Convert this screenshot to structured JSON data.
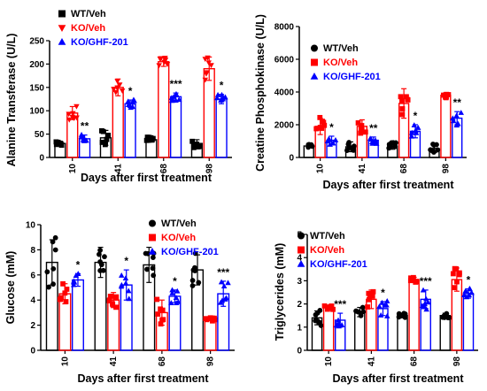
{
  "colors": {
    "WT/Veh": "#000000",
    "KO/Veh": "#ff0000",
    "KO/GHF-201": "#0000ff"
  },
  "chart_data": [
    {
      "id": "alt",
      "type": "bar",
      "ylabel": "Alanine Transferase (U/L)",
      "xlabel": "Days after first treatment",
      "categories": [
        "10",
        "41",
        "68",
        "98"
      ],
      "ylim": [
        0,
        250
      ],
      "yticks": [
        "0",
        "50",
        "100",
        "150",
        "200",
        "250"
      ],
      "legend": "top-left",
      "series": [
        {
          "name": "WT/Veh",
          "marker": "square",
          "values": [
            30,
            42,
            38,
            30
          ],
          "err": [
            4,
            16,
            5,
            8
          ]
        },
        {
          "name": "KO/Veh",
          "marker": "triangle-down",
          "values": [
            95,
            150,
            205,
            190
          ],
          "err": [
            14,
            18,
            10,
            25
          ]
        },
        {
          "name": "KO/GHF-201",
          "marker": "triangle-up",
          "values": [
            40,
            115,
            130,
            125
          ],
          "err": [
            8,
            8,
            8,
            10
          ]
        }
      ],
      "annotations": [
        {
          "category": "10",
          "text": "**"
        },
        {
          "category": "41",
          "text": "*"
        },
        {
          "category": "68",
          "text": "***"
        },
        {
          "category": "98",
          "text": "*"
        }
      ]
    },
    {
      "id": "ck",
      "type": "bar",
      "ylabel": "Creatine Phosphokinase (U/L)",
      "xlabel": "Days after first treatment",
      "categories": [
        "10",
        "41",
        "68",
        "98"
      ],
      "ylim": [
        0,
        8000
      ],
      "yticks": [
        "0",
        "2000",
        "4000",
        "6000",
        "8000"
      ],
      "legend": "top-right",
      "series": [
        {
          "name": "WT/Veh",
          "marker": "circle",
          "values": [
            700,
            650,
            700,
            550
          ],
          "err": [
            80,
            300,
            200,
            250
          ]
        },
        {
          "name": "KO/Veh",
          "marker": "square",
          "values": [
            1900,
            1900,
            3300,
            3800
          ],
          "err": [
            500,
            400,
            900,
            150
          ]
        },
        {
          "name": "KO/GHF-201",
          "marker": "triangle-up",
          "values": [
            1050,
            1050,
            1600,
            2400
          ],
          "err": [
            250,
            200,
            400,
            400
          ]
        }
      ],
      "annotations": [
        {
          "category": "10",
          "text": "*"
        },
        {
          "category": "41",
          "text": "**"
        },
        {
          "category": "68",
          "text": "*"
        },
        {
          "category": "98",
          "text": "**"
        }
      ]
    },
    {
      "id": "glu",
      "type": "bar",
      "ylabel": "Glucose (mM)",
      "xlabel": "Days after first treatment",
      "categories": [
        "10",
        "41",
        "68",
        "98"
      ],
      "ylim": [
        0,
        10
      ],
      "yticks": [
        "0",
        "2",
        "4",
        "6",
        "8",
        "10"
      ],
      "legend": "top-right",
      "series": [
        {
          "name": "WT/Veh",
          "marker": "circle",
          "values": [
            7.0,
            7.0,
            6.8,
            6.4
          ],
          "err": [
            1.8,
            1.2,
            1.4,
            1.2
          ]
        },
        {
          "name": "KO/Veh",
          "marker": "square",
          "values": [
            4.5,
            4.0,
            3.0,
            2.5
          ],
          "err": [
            0.8,
            0.6,
            1.0,
            0.15
          ]
        },
        {
          "name": "KO/GHF-201",
          "marker": "triangle-up",
          "values": [
            5.6,
            5.2,
            4.3,
            4.5
          ],
          "err": [
            0.5,
            1.2,
            0.5,
            1.0
          ]
        }
      ],
      "annotations": [
        {
          "category": "10",
          "text": "*"
        },
        {
          "category": "41",
          "text": "*"
        },
        {
          "category": "68",
          "text": "*"
        },
        {
          "category": "98",
          "text": "***"
        }
      ]
    },
    {
      "id": "tg",
      "type": "bar",
      "ylabel": "Triglycerides (mM)",
      "xlabel": "Days after first treatment",
      "categories": [
        "10",
        "41",
        "68",
        "98"
      ],
      "ylim": [
        0,
        5
      ],
      "yticks": [
        "0",
        "1",
        "2",
        "3",
        "4",
        "5"
      ],
      "legend": "top-right",
      "series": [
        {
          "name": "WT/Veh",
          "marker": "circle",
          "values": [
            1.4,
            1.65,
            1.5,
            1.5
          ],
          "err": [
            0.3,
            0.2,
            0.1,
            0.1
          ]
        },
        {
          "name": "KO/Veh",
          "marker": "square",
          "values": [
            1.85,
            2.2,
            3.05,
            3.05
          ],
          "err": [
            0.1,
            0.4,
            0.1,
            0.5
          ]
        },
        {
          "name": "KO/GHF-201",
          "marker": "triangle-up",
          "values": [
            1.3,
            1.8,
            2.2,
            2.45
          ],
          "err": [
            0.3,
            0.3,
            0.4,
            0.2
          ]
        }
      ],
      "annotations": [
        {
          "category": "10",
          "text": "***"
        },
        {
          "category": "41",
          "text": "*"
        },
        {
          "category": "68",
          "text": "***"
        },
        {
          "category": "98",
          "text": "*"
        }
      ]
    }
  ]
}
